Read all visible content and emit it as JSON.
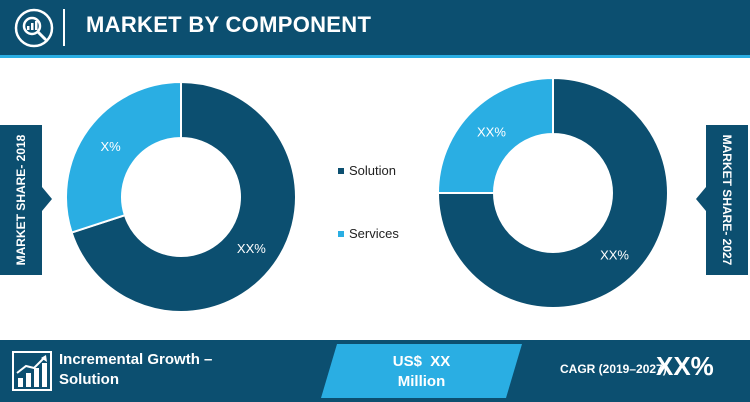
{
  "header": {
    "title": "MARKET BY COMPONENT",
    "icon": "magnifier-chart-icon"
  },
  "side_labels": {
    "left": "MARKET SHARE- 2018",
    "right": "MARKET SHARE- 2027"
  },
  "colors": {
    "dark_blue": "#0c4f70",
    "light_blue": "#2aaee3",
    "white": "#ffffff"
  },
  "chart_data": [
    {
      "type": "pie",
      "variant": "donut",
      "year_label": "MARKET SHARE- 2018",
      "categories": [
        "Solution",
        "Services"
      ],
      "values": [
        70,
        30
      ],
      "data_labels": [
        "XX%",
        "X%"
      ],
      "colors": [
        "#0c4f70",
        "#2aaee3"
      ]
    },
    {
      "type": "pie",
      "variant": "donut",
      "year_label": "MARKET SHARE- 2027",
      "categories": [
        "Solution",
        "Services"
      ],
      "values": [
        75,
        25
      ],
      "data_labels": [
        "XX%",
        "XX%"
      ],
      "colors": [
        "#0c4f70",
        "#2aaee3"
      ]
    }
  ],
  "legend": {
    "items": [
      {
        "label": "Solution",
        "color": "#0c4f70"
      },
      {
        "label": "Services",
        "color": "#2aaee3"
      }
    ]
  },
  "footer": {
    "growth_icon": "bar-growth-icon",
    "growth_line1": "Incremental Growth –",
    "growth_line2": "Solution",
    "value_line1": "US$  XX",
    "value_line2": "Million",
    "cagr_label": "CAGR (2019–2027)",
    "cagr_value": "XX%"
  }
}
